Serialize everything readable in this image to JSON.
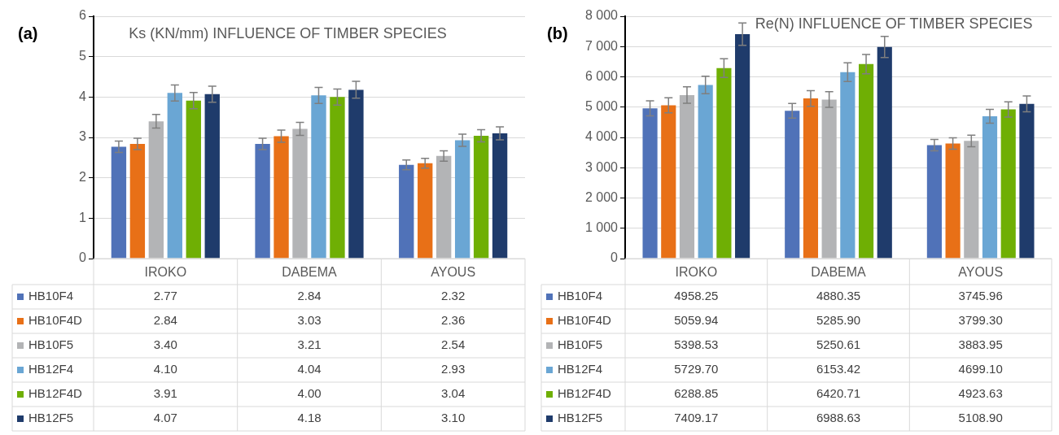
{
  "chart_data": [
    {
      "type": "bar",
      "title": "Ks (KN/mm) INFLUENCE OF TIMBER SPECIES",
      "annotations": [
        "(a)"
      ],
      "categories": [
        "IROKO",
        "DABEMA",
        "AYOUS"
      ],
      "ylim": [
        0,
        6
      ],
      "yticks": [
        0,
        1,
        2,
        3,
        4,
        5,
        6
      ],
      "grid": "y",
      "legend": "bottom",
      "series": [
        {
          "name": "HB10F4",
          "color": "#5072b8",
          "values": [
            2.77,
            2.84,
            2.32
          ],
          "errors": [
            0.14,
            0.14,
            0.12
          ],
          "value_labels": [
            "2.77",
            "2.84",
            "2.32"
          ]
        },
        {
          "name": "HB10F4D",
          "color": "#e87017",
          "values": [
            2.84,
            3.03,
            2.36
          ],
          "errors": [
            0.14,
            0.15,
            0.12
          ],
          "value_labels": [
            "2.84",
            "3.03",
            "2.36"
          ]
        },
        {
          "name": "HB10F5",
          "color": "#b3b4b6",
          "values": [
            3.4,
            3.21,
            2.54
          ],
          "errors": [
            0.17,
            0.16,
            0.13
          ],
          "value_labels": [
            "3.40",
            "3.21",
            "2.54"
          ]
        },
        {
          "name": "HB12F4",
          "color": "#6aa6d4",
          "values": [
            4.1,
            4.04,
            2.93
          ],
          "errors": [
            0.2,
            0.2,
            0.15
          ],
          "value_labels": [
            "4.10",
            "4.04",
            "2.93"
          ]
        },
        {
          "name": "HB12F4D",
          "color": "#6faf04",
          "values": [
            3.91,
            4.0,
            3.04
          ],
          "errors": [
            0.2,
            0.2,
            0.15
          ],
          "value_labels": [
            "3.91",
            "4.00",
            "3.04"
          ]
        },
        {
          "name": "HB12F5",
          "color": "#1f3b6b",
          "values": [
            4.07,
            4.18,
            3.1
          ],
          "errors": [
            0.2,
            0.21,
            0.16
          ],
          "value_labels": [
            "4.07",
            "4.18",
            "3.10"
          ]
        }
      ]
    },
    {
      "type": "bar",
      "title": "Re(N) INFLUENCE OF TIMBER SPECIES",
      "annotations": [
        "(b)"
      ],
      "categories": [
        "IROKO",
        "DABEMA",
        "AYOUS"
      ],
      "ylim": [
        0,
        8000
      ],
      "yticks": [
        0,
        {
          "value": 1000,
          "label": "1 000"
        },
        {
          "value": 2000,
          "label": "2 000"
        },
        {
          "value": 3000,
          "label": "3 000"
        },
        {
          "value": 4000,
          "label": "4 000"
        },
        {
          "value": 5000,
          "label": "5 000"
        },
        {
          "value": 6000,
          "label": "6 000"
        },
        {
          "value": 7000,
          "label": "7 000"
        },
        {
          "value": 8000,
          "label": "8 000"
        }
      ],
      "grid": "y",
      "legend": "bottom",
      "series": [
        {
          "name": "HB10F4",
          "color": "#5072b8",
          "values": [
            4958.25,
            4880.35,
            3745.96
          ],
          "errors": [
            250,
            240,
            190
          ],
          "value_labels": [
            "4958.25",
            "4880.35",
            "3745.96"
          ]
        },
        {
          "name": "HB10F4D",
          "color": "#e87017",
          "values": [
            5059.94,
            5285.9,
            3799.3
          ],
          "errors": [
            250,
            260,
            190
          ],
          "value_labels": [
            "5059.94",
            "5285.90",
            "3799.30"
          ]
        },
        {
          "name": "HB10F5",
          "color": "#b3b4b6",
          "values": [
            5398.53,
            5250.61,
            3883.95
          ],
          "errors": [
            270,
            260,
            190
          ],
          "value_labels": [
            "5398.53",
            "5250.61",
            "3883.95"
          ]
        },
        {
          "name": "HB12F4",
          "color": "#6aa6d4",
          "values": [
            5729.7,
            6153.42,
            4699.1
          ],
          "errors": [
            290,
            310,
            230
          ],
          "value_labels": [
            "5729.70",
            "6153.42",
            "4699.10"
          ]
        },
        {
          "name": "HB12F4D",
          "color": "#6faf04",
          "values": [
            6288.85,
            6420.71,
            4923.63
          ],
          "errors": [
            310,
            320,
            250
          ],
          "value_labels": [
            "6288.85",
            "6420.71",
            "4923.63"
          ]
        },
        {
          "name": "HB12F5",
          "color": "#1f3b6b",
          "values": [
            7409.17,
            6988.63,
            5108.9
          ],
          "errors": [
            370,
            350,
            260
          ],
          "value_labels": [
            "7409.17",
            "6988.63",
            "5108.90"
          ]
        }
      ]
    }
  ]
}
